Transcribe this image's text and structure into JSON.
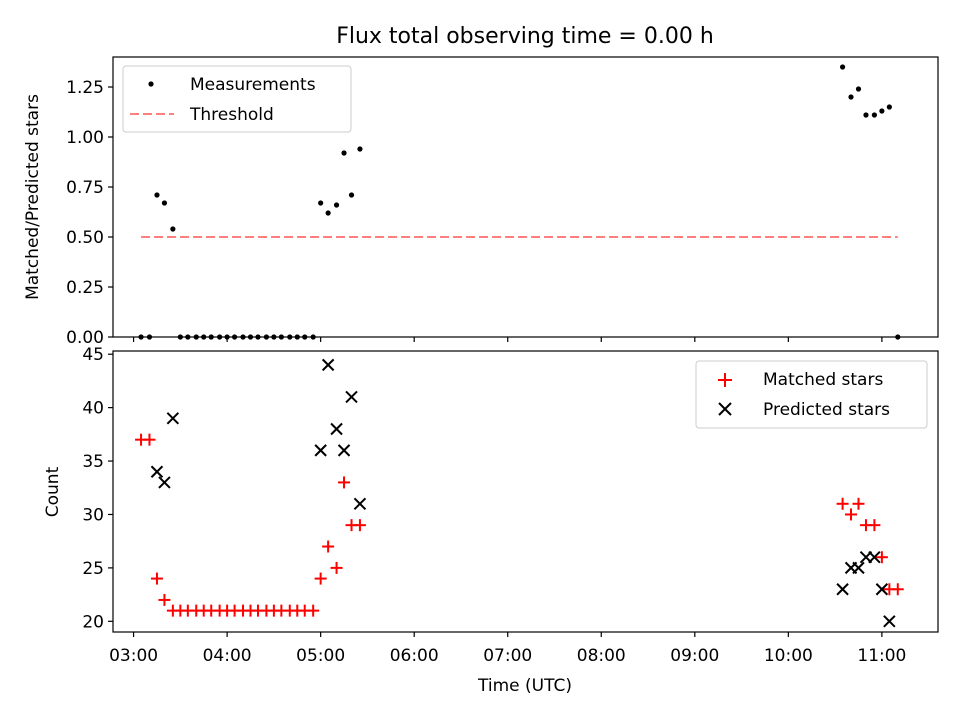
{
  "title": "Flux total observing time = 0.00 h",
  "chart_data": [
    {
      "type": "scatter",
      "ylabel": "Matched/Predicted stars",
      "xlabel": "",
      "xlim": [
        2.78,
        11.6
      ],
      "ylim": [
        0.0,
        1.4
      ],
      "grid": false,
      "legend_position": "upper-left",
      "y_ticks": [
        "0.00",
        "0.25",
        "0.50",
        "0.75",
        "1.00",
        "1.25"
      ],
      "series": [
        {
          "name": "Measurements",
          "marker": "dot",
          "color": "#000000",
          "x": [
            3.08,
            3.17,
            3.25,
            3.33,
            3.42,
            3.5,
            3.58,
            3.67,
            3.75,
            3.83,
            3.92,
            4.0,
            4.08,
            4.17,
            4.25,
            4.33,
            4.42,
            4.5,
            4.58,
            4.67,
            4.75,
            4.83,
            4.92,
            5.0,
            5.08,
            5.17,
            5.25,
            5.33,
            5.42,
            10.58,
            10.67,
            10.75,
            10.83,
            10.92,
            11.0,
            11.08,
            11.17
          ],
          "y": [
            0.0,
            0.0,
            0.71,
            0.67,
            0.54,
            0.0,
            0.0,
            0.0,
            0.0,
            0.0,
            0.0,
            0.0,
            0.0,
            0.0,
            0.0,
            0.0,
            0.0,
            0.0,
            0.0,
            0.0,
            0.0,
            0.0,
            0.0,
            0.67,
            0.62,
            0.66,
            0.92,
            0.71,
            0.94,
            1.35,
            1.2,
            1.24,
            1.11,
            1.11,
            1.13,
            1.15,
            0.0
          ]
        },
        {
          "name": "Threshold",
          "marker": "dashed-line",
          "color": "#ff7f7f",
          "x": [
            3.08,
            11.17
          ],
          "y": [
            0.5,
            0.5
          ]
        }
      ]
    },
    {
      "type": "scatter",
      "ylabel": "Count",
      "xlabel": "Time (UTC)",
      "xlim": [
        2.78,
        11.6
      ],
      "ylim": [
        19,
        45.3
      ],
      "grid": false,
      "legend_position": "upper-right",
      "x_ticks": [
        "03:00",
        "04:00",
        "05:00",
        "06:00",
        "07:00",
        "08:00",
        "09:00",
        "10:00",
        "11:00"
      ],
      "y_ticks": [
        "20",
        "25",
        "30",
        "35",
        "40",
        "45"
      ],
      "series": [
        {
          "name": "Matched stars",
          "marker": "plus",
          "color": "#ff0000",
          "x": [
            3.08,
            3.17,
            3.25,
            3.33,
            3.42,
            3.5,
            3.58,
            3.67,
            3.75,
            3.83,
            3.92,
            4.0,
            4.08,
            4.17,
            4.25,
            4.33,
            4.42,
            4.5,
            4.58,
            4.67,
            4.75,
            4.83,
            4.92,
            5.0,
            5.08,
            5.17,
            5.25,
            5.33,
            5.42,
            10.58,
            10.67,
            10.75,
            10.83,
            10.92,
            11.0,
            11.08,
            11.17
          ],
          "y": [
            37,
            37,
            24,
            22,
            21,
            21,
            21,
            21,
            21,
            21,
            21,
            21,
            21,
            21,
            21,
            21,
            21,
            21,
            21,
            21,
            21,
            21,
            21,
            24,
            27,
            25,
            33,
            29,
            29,
            31,
            30,
            31,
            29,
            29,
            26,
            23,
            23
          ]
        },
        {
          "name": "Predicted stars",
          "marker": "x",
          "color": "#000000",
          "x": [
            3.25,
            3.33,
            3.42,
            5.0,
            5.08,
            5.17,
            5.25,
            5.33,
            5.42,
            10.58,
            10.67,
            10.75,
            10.83,
            10.92,
            11.0,
            11.08
          ],
          "y": [
            34,
            33,
            39,
            36,
            44,
            38,
            36,
            41,
            31,
            23,
            25,
            25,
            26,
            26,
            23,
            20
          ]
        }
      ]
    }
  ]
}
